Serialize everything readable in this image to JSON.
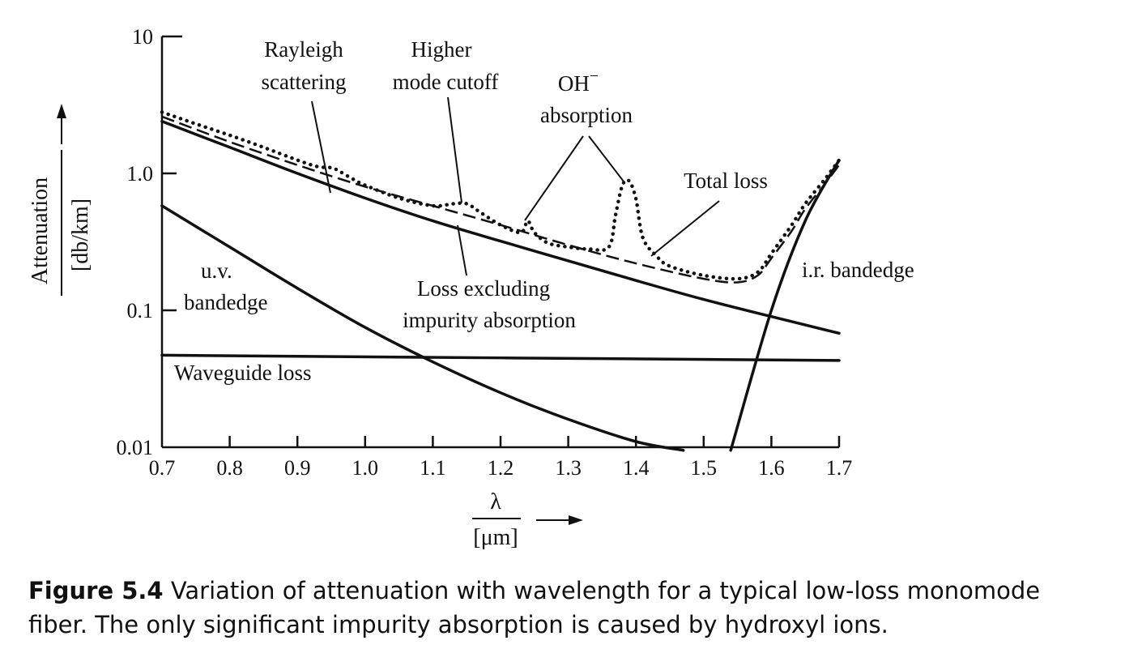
{
  "chart_data": {
    "type": "line",
    "xlabel": "λ",
    "xunit": "[μm]",
    "ylabel": "Attenuation",
    "yunit": "[db/km]",
    "xlim": [
      0.7,
      1.7
    ],
    "ylim": [
      0.01,
      10
    ],
    "yscale": "log",
    "grid": false,
    "x_ticks": [
      "0.7",
      "0.8",
      "0.9",
      "1.0",
      "1.1",
      "1.2",
      "1.3",
      "1.4",
      "1.5",
      "1.6",
      "1.7"
    ],
    "y_ticks": [
      "10",
      "1.0",
      "0.1",
      "0.01"
    ],
    "series": [
      {
        "name": "Total loss",
        "style": "dotted",
        "x": [
          0.7,
          0.75,
          0.8,
          0.85,
          0.9,
          0.93,
          0.95,
          0.96,
          0.98,
          1.0,
          1.05,
          1.1,
          1.13,
          1.15,
          1.17,
          1.2,
          1.23,
          1.24,
          1.25,
          1.27,
          1.3,
          1.33,
          1.36,
          1.37,
          1.38,
          1.39,
          1.4,
          1.41,
          1.43,
          1.45,
          1.5,
          1.55,
          1.58,
          1.6,
          1.63,
          1.65,
          1.68,
          1.7
        ],
        "y": [
          2.8,
          2.3,
          1.9,
          1.55,
          1.25,
          1.12,
          1.1,
          1.05,
          0.92,
          0.82,
          0.66,
          0.58,
          0.6,
          0.6,
          0.52,
          0.42,
          0.37,
          0.45,
          0.37,
          0.31,
          0.29,
          0.28,
          0.29,
          0.5,
          0.82,
          0.88,
          0.65,
          0.34,
          0.25,
          0.21,
          0.18,
          0.17,
          0.19,
          0.26,
          0.42,
          0.6,
          0.92,
          1.25
        ]
      },
      {
        "name": "",
        "style": "dashed",
        "x": [
          0.7,
          0.8,
          0.9,
          1.0,
          1.1,
          1.2,
          1.3,
          1.4,
          1.5,
          1.55,
          1.58,
          1.6,
          1.63,
          1.65,
          1.68,
          1.7
        ],
        "y": [
          2.6,
          1.7,
          1.15,
          0.8,
          0.58,
          0.42,
          0.3,
          0.22,
          0.17,
          0.16,
          0.18,
          0.24,
          0.38,
          0.55,
          0.85,
          1.15
        ]
      },
      {
        "name": "Loss excluding impurity absorption",
        "style": "solid",
        "x": [
          0.7,
          0.8,
          0.9,
          1.0,
          1.1,
          1.2,
          1.3,
          1.4,
          1.5,
          1.6,
          1.7
        ],
        "y": [
          2.4,
          1.55,
          1.0,
          0.66,
          0.45,
          0.32,
          0.23,
          0.165,
          0.12,
          0.09,
          0.068
        ]
      },
      {
        "name": "u.v. bandedge",
        "style": "solid",
        "x": [
          0.7,
          0.8,
          0.9,
          1.0,
          1.1,
          1.2,
          1.3,
          1.4,
          1.47
        ],
        "y": [
          0.58,
          0.29,
          0.145,
          0.075,
          0.042,
          0.025,
          0.016,
          0.011,
          0.0095
        ]
      },
      {
        "name": "Waveguide loss",
        "style": "solid",
        "x": [
          0.7,
          1.7
        ],
        "y": [
          0.047,
          0.043
        ]
      },
      {
        "name": "i.r. bandedge",
        "style": "solid",
        "x": [
          1.54,
          1.6,
          1.65,
          1.7
        ],
        "y": [
          0.0095,
          0.1,
          0.45,
          1.25
        ]
      }
    ],
    "annotations": {
      "rayleigh_1": "Rayleigh",
      "rayleigh_2": "scattering",
      "higher_1": "Higher",
      "higher_2": "mode cutoff",
      "oh_1": "OH",
      "oh_sup": "−",
      "oh_2": "absorption",
      "total": "Total loss",
      "lei_1": "Loss excluding",
      "lei_2": "impurity absorption",
      "uv_1": "u.v.",
      "uv_2": "bandedge",
      "ir": "i.r. bandedge",
      "waveguide": "Waveguide loss"
    }
  },
  "caption": {
    "label": "Figure 5.4",
    "text": " Variation of attenuation with wavelength for a typical low-loss monomode fiber. The only significant impurity absorption is caused by hydroxyl ions."
  }
}
